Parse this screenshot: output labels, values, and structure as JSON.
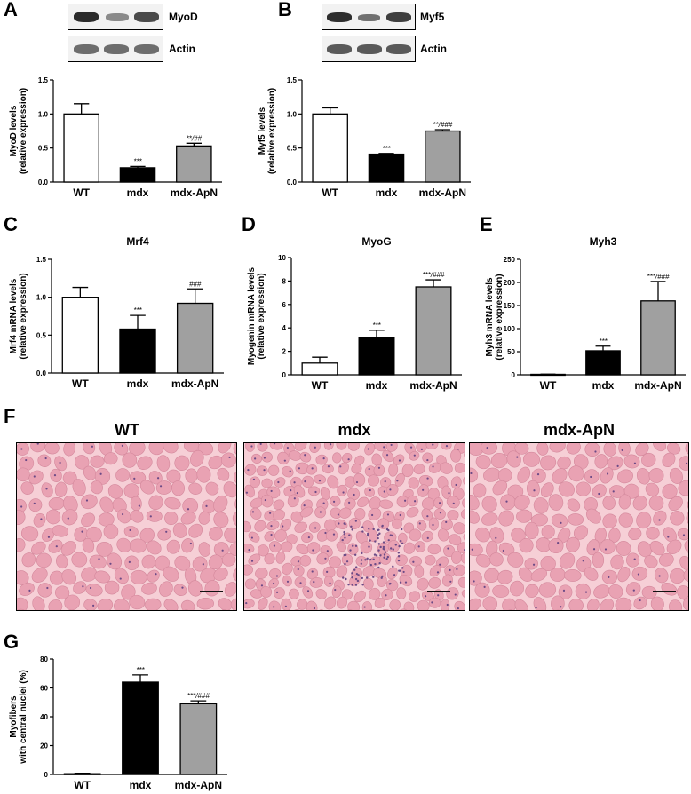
{
  "panels": {
    "A": "A",
    "B": "B",
    "C": "C",
    "D": "D",
    "E": "E",
    "F": "F",
    "G": "G"
  },
  "blots": {
    "A": {
      "top_label": "MyoD",
      "bottom_label": "Actin"
    },
    "B": {
      "top_label": "Myf5",
      "bottom_label": "Actin"
    }
  },
  "histology": {
    "titles": [
      "WT",
      "mdx",
      "mdx-ApN"
    ],
    "colors": {
      "background": "#f6cfd6",
      "fiber": "#e9a2b3",
      "fiber_edge": "#d4889c",
      "nuclei": "#6b4a86"
    }
  },
  "colors": {
    "wt": "#ffffff",
    "mdx": "#000000",
    "apn": "#a0a0a0",
    "axis": "#000000"
  },
  "chart_data": [
    {
      "id": "A",
      "type": "bar",
      "categories": [
        "WT",
        "mdx",
        "mdx-ApN"
      ],
      "values": [
        1.0,
        0.21,
        0.53
      ],
      "errors": [
        0.15,
        0.02,
        0.04
      ],
      "annotations": [
        "",
        "***",
        "**/##"
      ],
      "title": "",
      "ylabel": [
        "MyoD levels",
        "(relative expression)"
      ],
      "ylim": [
        0,
        1.5
      ],
      "yticks": [
        0.0,
        0.5,
        1.0,
        1.5
      ],
      "ytick_labels": [
        "0.0",
        "0.5",
        "1.0",
        "1.5"
      ]
    },
    {
      "id": "B",
      "type": "bar",
      "categories": [
        "WT",
        "mdx",
        "mdx-ApN"
      ],
      "values": [
        1.0,
        0.41,
        0.75
      ],
      "errors": [
        0.09,
        0.01,
        0.02
      ],
      "annotations": [
        "",
        "***",
        "**/###"
      ],
      "title": "",
      "ylabel": [
        "Myf5 levels",
        "(relative expression)"
      ],
      "ylim": [
        0,
        1.5
      ],
      "yticks": [
        0.0,
        0.5,
        1.0,
        1.5
      ],
      "ytick_labels": [
        "0.0",
        "0.5",
        "1.0",
        "1.5"
      ]
    },
    {
      "id": "C",
      "type": "bar",
      "categories": [
        "WT",
        "mdx",
        "mdx-ApN"
      ],
      "values": [
        1.0,
        0.58,
        0.92
      ],
      "errors": [
        0.13,
        0.18,
        0.19
      ],
      "annotations": [
        "",
        "***",
        "###"
      ],
      "title": "Mrf4",
      "ylabel": [
        "Mrf4 mRNA levels",
        "(relative expression)"
      ],
      "ylim": [
        0,
        1.5
      ],
      "yticks": [
        0.0,
        0.5,
        1.0,
        1.5
      ],
      "ytick_labels": [
        "0.0",
        "0.5",
        "1.0",
        "1.5"
      ]
    },
    {
      "id": "D",
      "type": "bar",
      "categories": [
        "WT",
        "mdx",
        "mdx-ApN"
      ],
      "values": [
        1.0,
        3.2,
        7.5
      ],
      "errors": [
        0.5,
        0.6,
        0.6
      ],
      "annotations": [
        "",
        "***",
        "***/###"
      ],
      "title": "MyoG",
      "ylabel": [
        "Myogenin mRNA levels",
        "(relative expression)"
      ],
      "ylim": [
        0,
        10
      ],
      "yticks": [
        0,
        2,
        4,
        6,
        8,
        10
      ],
      "ytick_labels": [
        "0",
        "2",
        "4",
        "6",
        "8",
        "10"
      ]
    },
    {
      "id": "E",
      "type": "bar",
      "categories": [
        "WT",
        "mdx",
        "mdx-ApN"
      ],
      "values": [
        1,
        52,
        160
      ],
      "errors": [
        0.5,
        10,
        42
      ],
      "annotations": [
        "",
        "***",
        "***/###"
      ],
      "title": "Myh3",
      "ylabel": [
        "Myh3 mRNA levels",
        "(relative expression)"
      ],
      "ylim": [
        0,
        250
      ],
      "yticks": [
        0,
        50,
        100,
        150,
        200,
        250
      ],
      "ytick_labels": [
        "0",
        "50",
        "100",
        "150",
        "200",
        "250"
      ]
    },
    {
      "id": "G",
      "type": "bar",
      "categories": [
        "WT",
        "mdx",
        "mdx-ApN"
      ],
      "values": [
        0.5,
        64,
        49
      ],
      "errors": [
        0.3,
        5,
        2
      ],
      "annotations": [
        "",
        "***",
        "***/###"
      ],
      "title": "",
      "ylabel": [
        "Myofibers",
        "with central nuclei (%)"
      ],
      "ylim": [
        0,
        80
      ],
      "yticks": [
        0,
        20,
        40,
        60,
        80
      ],
      "ytick_labels": [
        "0",
        "20",
        "40",
        "60",
        "80"
      ]
    }
  ]
}
